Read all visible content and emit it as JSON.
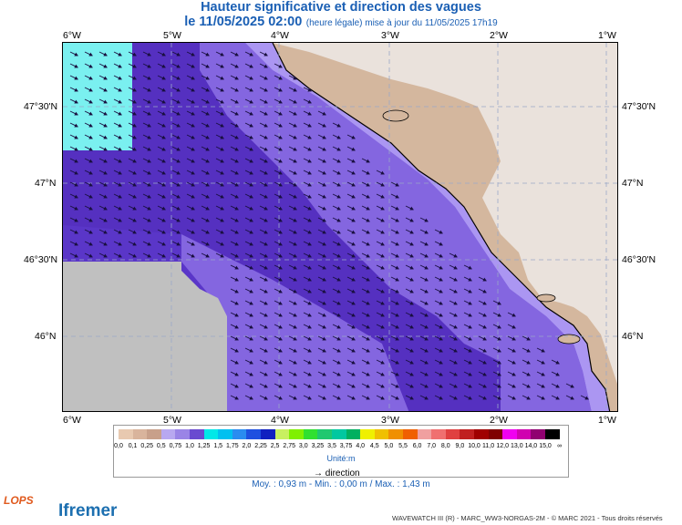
{
  "title": "Hauteur significative et direction des vagues",
  "subtitle_main": "le 11/05/2025 02:00",
  "subtitle_small": "(heure légale) mise à jour du 11/05/2025 17h19",
  "lon_labels": [
    "6°W",
    "5°W",
    "4°W",
    "3°W",
    "2°W",
    "1°W"
  ],
  "lat_labels": [
    "47°30'N",
    "47°N",
    "46°30'N",
    "46°N"
  ],
  "colorbar": {
    "ticks": [
      "0,0",
      "0,1",
      "0,25",
      "0,5",
      "0,75",
      "1,0",
      "1,25",
      "1,5",
      "1,75",
      "2,0",
      "2,25",
      "2,5",
      "2,75",
      "3,0",
      "3,25",
      "3,5",
      "3,75",
      "4,0",
      "4,5",
      "5,0",
      "5,5",
      "6,0",
      "7,0",
      "8,0",
      "9,0",
      "10,0",
      "11,0",
      "12,0",
      "13,0",
      "14,0",
      "15,0",
      "∞"
    ],
    "colors": [
      "#e8c9b0",
      "#d9b49c",
      "#c8a08a",
      "#b8a8f0",
      "#9a84e6",
      "#6a4ad0",
      "#00e8e8",
      "#00c0f0",
      "#2a8cf0",
      "#1e50e0",
      "#1020c0",
      "#c8f060",
      "#80f000",
      "#30e030",
      "#20c870",
      "#00c8a0",
      "#00b060",
      "#f0f000",
      "#f0c000",
      "#f09000",
      "#f06000",
      "#f0a0a0",
      "#f07070",
      "#e04040",
      "#c02020",
      "#a00000",
      "#800000",
      "#f000f0",
      "#d000b0",
      "#900070",
      "#000000"
    ],
    "unit": "Unité:m"
  },
  "direction_label": "direction",
  "stats": "Moy. : 0,93 m   -   Min. : 0,00 m / Max. : 1,43 m",
  "footer": "WAVEWATCH III (R) - MARC_WW3-NORGAS-2M - © MARC 2021 - Tous droits réservés",
  "logos": {
    "left": "LOPS",
    "right": "Ifremer"
  }
}
